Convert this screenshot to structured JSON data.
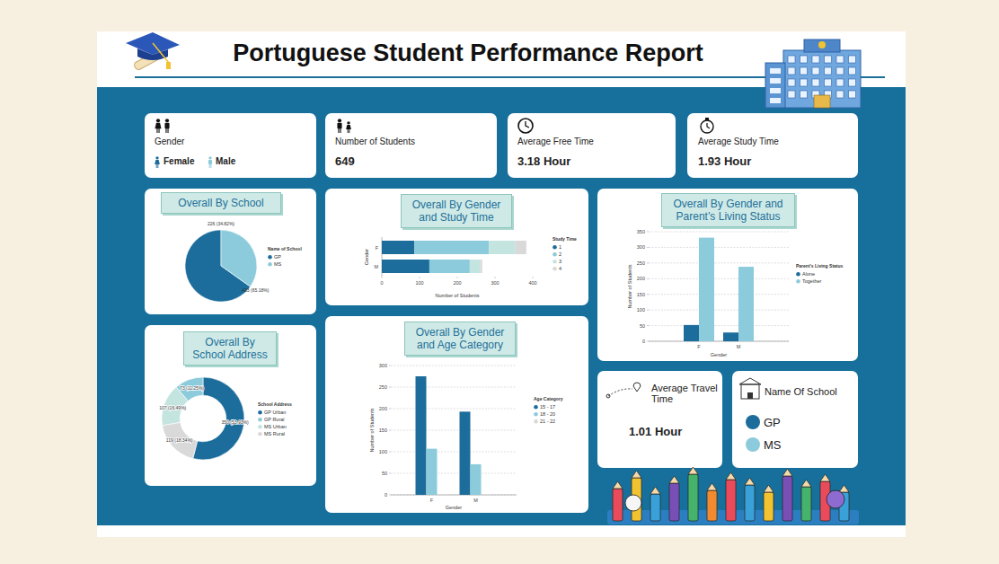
{
  "title": "Portuguese Student Performance Report",
  "cards": {
    "gender": {
      "title": "Gender",
      "items": [
        "Female",
        "Male"
      ]
    },
    "students": {
      "title": "Number of Students",
      "value": "649"
    },
    "free_time": {
      "title": "Average Free Time",
      "value": "3.18 Hour"
    },
    "study_time": {
      "title": "Average Study Time",
      "value": "1.93 Hour"
    },
    "travel_time": {
      "title": "Average Travel Time",
      "value": "1.01 Hour"
    },
    "school_name": {
      "title": "Name Of School",
      "items": [
        "GP",
        "MS"
      ]
    }
  },
  "chart_data": [
    {
      "type": "pie",
      "title": "Overall By School",
      "legend_title": "Name of School",
      "categories": [
        "GP",
        "MS"
      ],
      "values": [
        423,
        226
      ],
      "value_labels": [
        "423 (65.18%)",
        "226 (34.82%)"
      ],
      "colors": [
        "#1c6d9c",
        "#8ccbdb"
      ],
      "data_labels": true,
      "legend": "right"
    },
    {
      "type": "donut",
      "title": "Overall By School Address",
      "legend_title": "School Address",
      "categories": [
        "GP Urban",
        "GP Rural",
        "MS Urban",
        "MS Rural"
      ],
      "values": [
        350,
        73,
        107,
        119
      ],
      "value_labels": [
        "350 (53.93%)",
        "73 (11.25%)",
        "107 (16.49%)",
        "119 (18.34%)"
      ],
      "colors": [
        "#1c6d9c",
        "#8ccbdb",
        "#c4e4e0",
        "#d9d9d9"
      ],
      "data_labels": true,
      "legend": "right"
    },
    {
      "type": "bar",
      "title": "Overall By Gender and Study Time",
      "orientation": "horizontal",
      "stacked": true,
      "categories": [
        "F",
        "M"
      ],
      "series": [
        {
          "name": "1",
          "color": "#1c6d9c",
          "values": [
            86,
            126
          ]
        },
        {
          "name": "2",
          "color": "#8ccbdb",
          "values": [
            198,
            107
          ]
        },
        {
          "name": "3",
          "color": "#c4e4e0",
          "values": [
            69,
            28
          ]
        },
        {
          "name": "4",
          "color": "#d9d9d9",
          "values": [
            30,
            5
          ]
        }
      ],
      "xlim": [
        0,
        400
      ],
      "xticks": [
        0,
        100,
        200,
        300,
        400
      ],
      "x_label": "Number of Students",
      "y_label": "Gender",
      "legend_title": "Study Time",
      "legend": "right",
      "grid": false
    },
    {
      "type": "bar",
      "title": "Overall By Gender and Age Category",
      "categories": [
        "F",
        "M"
      ],
      "series": [
        {
          "name": "15 - 17",
          "color": "#1c6d9c",
          "values": [
            275,
            193
          ]
        },
        {
          "name": "18 - 20",
          "color": "#8ccbdb",
          "values": [
            107,
            71
          ]
        },
        {
          "name": "21 - 22",
          "color": "#d9d9d9",
          "values": [
            1,
            2
          ]
        }
      ],
      "ylim": [
        0,
        300
      ],
      "yticks": [
        0,
        50,
        100,
        150,
        200,
        250,
        300
      ],
      "x_label": "Gender",
      "y_label": "Number of Students",
      "legend_title": "Age Category",
      "legend": "right",
      "grid": true
    },
    {
      "type": "bar",
      "title": "Overall By Gender and Parent’s Living Status",
      "categories": [
        "F",
        "M"
      ],
      "series": [
        {
          "name": "Alone",
          "color": "#1c6d9c",
          "values": [
            52,
            28
          ]
        },
        {
          "name": "Together",
          "color": "#8ccbdb",
          "values": [
            331,
            238
          ]
        }
      ],
      "ylim": [
        0,
        350
      ],
      "yticks": [
        0,
        50,
        100,
        150,
        200,
        250,
        300,
        350
      ],
      "x_label": "Gender",
      "y_label": "Number of Students",
      "legend_title": "Parent’s Living Status",
      "legend": "right",
      "grid": true
    }
  ]
}
